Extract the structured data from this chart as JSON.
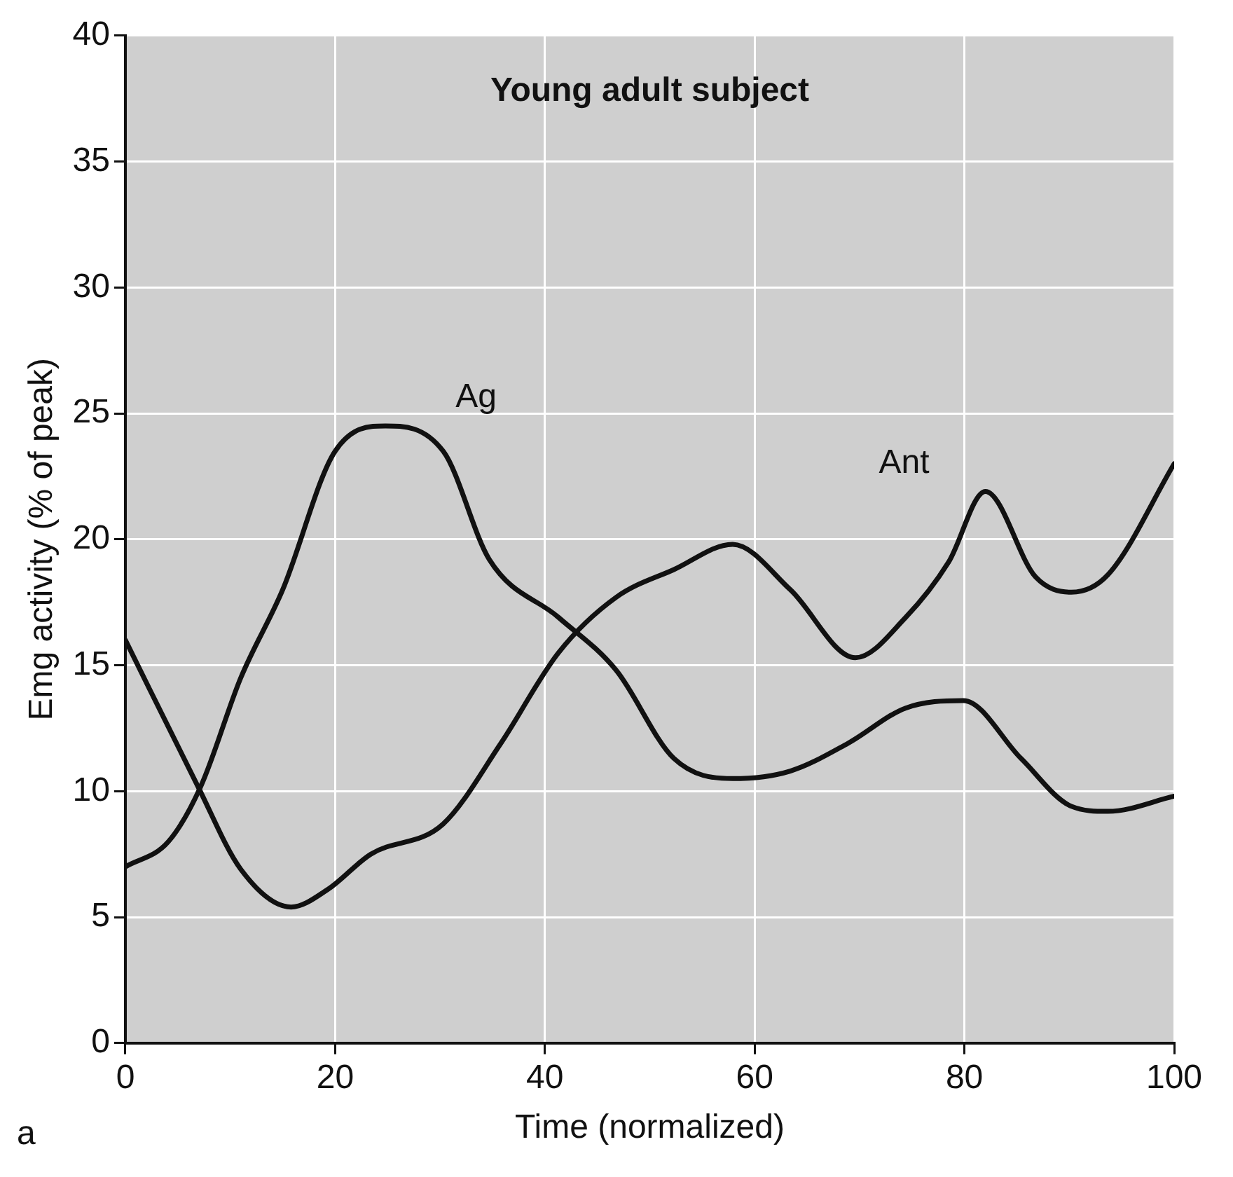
{
  "chart_data": {
    "type": "line",
    "title": "Young adult subject",
    "xlabel": "Time (normalized)",
    "ylabel": "Emg activity (% of peak)",
    "annotations": [
      "a"
    ],
    "series": [
      {
        "name": "Ag",
        "color": "#111111",
        "x": [
          0,
          4.1,
          7.2,
          11,
          15,
          20,
          24.8,
          30.3,
          34.7,
          41.3,
          46.8,
          52.3,
          57.9,
          63.4,
          68.9,
          74.4,
          79.9,
          85.4,
          90.2,
          93.7,
          100
        ],
        "values": [
          7,
          8,
          10.2,
          14.5,
          18,
          23.5,
          24.5,
          23.5,
          19.2,
          16.9,
          14.8,
          11.3,
          10.5,
          10.8,
          11.9,
          13.3,
          13.6,
          11.3,
          9.4,
          9.2,
          9.8
        ]
      },
      {
        "name": "Ant",
        "color": "#111111",
        "x": [
          0,
          6.9,
          11,
          15.8,
          19.3,
          23.4,
          30.3,
          35.8,
          41.3,
          46.8,
          52.3,
          57.9,
          63.4,
          69.6,
          74.4,
          78.5,
          82,
          86.8,
          90.2,
          93.7,
          100
        ],
        "values": [
          16,
          10.2,
          6.9,
          5.4,
          6.1,
          7.5,
          8.7,
          11.9,
          15.5,
          17.7,
          18.8,
          19.8,
          18,
          15.3,
          16.9,
          19.1,
          21.9,
          18.5,
          17.9,
          18.6,
          23
        ]
      }
    ],
    "xlim": [
      0,
      100
    ],
    "xticks": [
      0,
      20,
      40,
      60,
      80,
      100
    ],
    "ylim": [
      0,
      40
    ],
    "yticks": [
      0,
      5,
      10,
      15,
      20,
      25,
      30,
      35,
      40
    ],
    "grid": true,
    "legend": false,
    "marker": "none",
    "line_style": "solid"
  }
}
